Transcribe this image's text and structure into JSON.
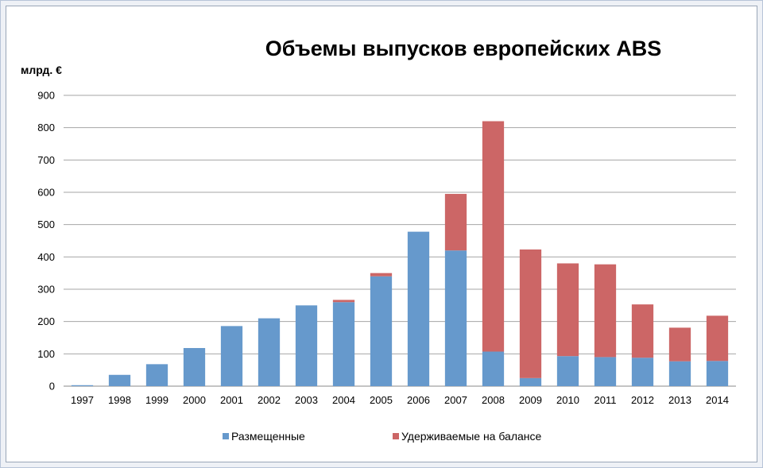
{
  "chart_data": {
    "type": "bar",
    "stacked": true,
    "title": "Объемы выпусков европейских ABS",
    "ylabel": "млрд. €",
    "xlabel": "",
    "ylim": [
      0,
      900
    ],
    "yticks": [
      0,
      100,
      200,
      300,
      400,
      500,
      600,
      700,
      800,
      900
    ],
    "grid": true,
    "legend_position": "bottom",
    "categories": [
      "1997",
      "1998",
      "1999",
      "2000",
      "2001",
      "2002",
      "2003",
      "2004",
      "2005",
      "2006",
      "2007",
      "2008",
      "2009",
      "2010",
      "2011",
      "2012",
      "2013",
      "2014"
    ],
    "series": [
      {
        "name": "Размещенные",
        "color": "#6699cc",
        "values": [
          3,
          35,
          68,
          118,
          186,
          210,
          250,
          260,
          340,
          478,
          420,
          107,
          25,
          93,
          90,
          88,
          77,
          78
        ]
      },
      {
        "name": "Удерживаемые на балансе",
        "color": "#cc6666",
        "values": [
          0,
          0,
          0,
          0,
          0,
          0,
          0,
          7,
          10,
          0,
          175,
          713,
          398,
          287,
          287,
          165,
          104,
          140
        ]
      }
    ]
  }
}
